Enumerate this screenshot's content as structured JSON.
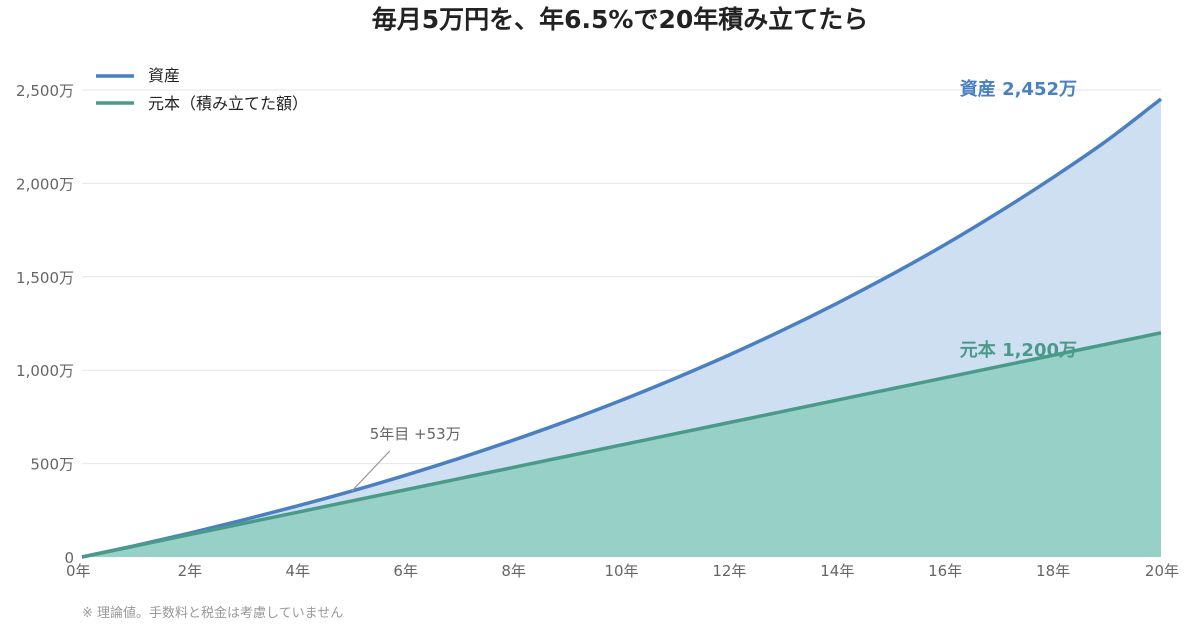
{
  "chart_data": {
    "type": "area",
    "title": "毎月5万円を、年6.5%で20年積み立てたら",
    "x": [
      0,
      1,
      2,
      3,
      4,
      5,
      6,
      7,
      8,
      9,
      10,
      11,
      12,
      13,
      14,
      15,
      16,
      17,
      18,
      19,
      20
    ],
    "x_tick_labels": [
      "0年",
      "2年",
      "4年",
      "6年",
      "8年",
      "10年",
      "12年",
      "14年",
      "16年",
      "18年",
      "20年"
    ],
    "x_ticks": [
      0,
      2,
      4,
      6,
      8,
      10,
      12,
      14,
      16,
      18,
      20
    ],
    "xlim": [
      0,
      20
    ],
    "ylim": [
      0,
      2600
    ],
    "y_ticks": [
      0,
      500,
      1000,
      1500,
      2000,
      2500
    ],
    "y_tick_labels": [
      "0",
      "500万",
      "1,000万",
      "1,500万",
      "2,000万",
      "2,500万"
    ],
    "grid": true,
    "legend_position": "top-left",
    "series": [
      {
        "name": "資産",
        "color": "#4a7fc1",
        "fill": "#cfdff2",
        "values": [
          0,
          62,
          128,
          199,
          274,
          353,
          438,
          529,
          626,
          729,
          839,
          957,
          1082,
          1216,
          1359,
          1511,
          1673,
          1847,
          2032,
          2230,
          2452
        ]
      },
      {
        "name": "元本（積み立てた額）",
        "color": "#4a9a8a",
        "fill": "#96d0c6",
        "values": [
          0,
          60,
          120,
          180,
          240,
          300,
          360,
          420,
          480,
          540,
          600,
          660,
          720,
          780,
          840,
          900,
          960,
          1020,
          1080,
          1140,
          1200
        ]
      }
    ],
    "end_labels": [
      "資産 2,452万",
      "元本 1,200万"
    ],
    "annotation": {
      "text": "5年目 +53万",
      "x": 5
    },
    "footnote": "※ 理論値。手数料と税金は考慮していません"
  }
}
